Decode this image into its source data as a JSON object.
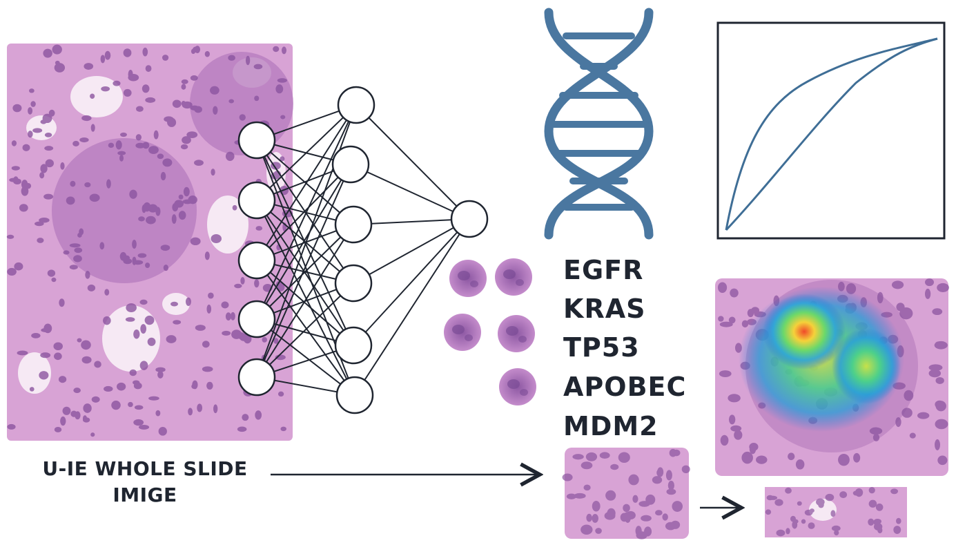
{
  "labels": {
    "wsi_line1": "U-IE WHOLE SLIDE",
    "wsi_line2": "IMIGE"
  },
  "genes": [
    "EGFR",
    "KRAS",
    "TP53",
    "APOBEC",
    "MDM2"
  ],
  "icons": {
    "dna": "dna-helix-icon",
    "network": "neural-network-icon",
    "curve": "roc-curve-icon"
  },
  "colors": {
    "tissue_bg": "#d9a6d6",
    "tissue_dark": "#9c5fa6",
    "nucleus": "#7b4b96",
    "dna_blue": "#4a77a0",
    "curve_blue": "#3f6e96",
    "text": "#1f2530"
  }
}
